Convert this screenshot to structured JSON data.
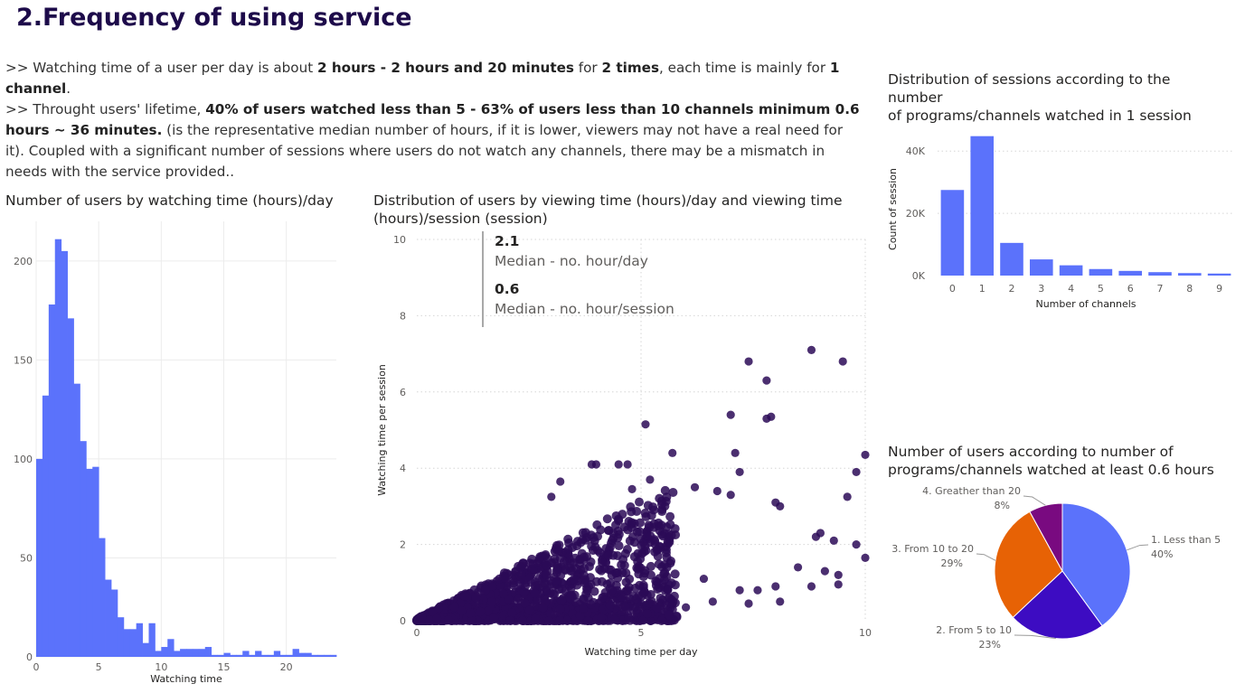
{
  "header": {
    "title": "2.Frequency of using service"
  },
  "description": {
    "p1": {
      "prefix": ">> Watching time of a user per day is about ",
      "bold1": "2 hours - 2 hours and 20 minutes",
      "mid": " for ",
      "bold2": "2 times",
      "mid2": ", each time is mainly for ",
      "bold3": "1 channel",
      "suffix": "."
    },
    "p2": {
      "prefix": ">> Throught users' lifetime, ",
      "bold1": "40% of users watched less than 5 - 63% of users less than 10 channels minimum 0.6 hours ~ 36 minutes.",
      "suffix": " (is the representative median number of hours, if it is lower, viewers may not have a real need for it). Coupled with a significant number of sessions where users do not watch any channels, there may be a mismatch in needs with the service provided.."
    }
  },
  "median_card": {
    "day_value": "2.1",
    "day_label": "Median - no. hour/day",
    "session_value": "0.6",
    "session_label": "Median - no. hour/session"
  },
  "colors": {
    "bar": "#5b72fb",
    "scatter": "#2b0a57",
    "pie": [
      "#5b72fb",
      "#3d0cc2",
      "#e76205",
      "#790a80"
    ]
  },
  "chart_data": [
    {
      "type": "bar",
      "title": "Number of users by watching time (hours)/day",
      "xlabel": "Watching time",
      "ylabel": "",
      "xlim": [
        0,
        24
      ],
      "ylim": [
        0,
        220
      ],
      "yticks": [
        0,
        50,
        100,
        150,
        200
      ],
      "xticks": [
        0,
        5,
        10,
        15,
        20
      ],
      "bin_width": 0.5,
      "bins_start": [
        0.0,
        0.5,
        1.0,
        1.5,
        2.0,
        2.5,
        3.0,
        3.5,
        4.0,
        4.5,
        5.0,
        5.5,
        6.0,
        6.5,
        7.0,
        7.5,
        8.0,
        8.5,
        9.0,
        9.5,
        10.0,
        10.5,
        11.0,
        11.5,
        12.0,
        12.5,
        13.0,
        13.5,
        14.0,
        14.5,
        15.0,
        15.5,
        16.0,
        16.5,
        17.0,
        17.5,
        18.0,
        18.5,
        19.0,
        19.5,
        20.0,
        20.5,
        21.0,
        21.5,
        22.0,
        22.5,
        23.0,
        23.5
      ],
      "values": [
        100,
        132,
        178,
        211,
        205,
        171,
        138,
        109,
        95,
        96,
        60,
        39,
        34,
        20,
        14,
        14,
        17,
        7,
        17,
        3,
        5,
        9,
        3,
        4,
        4,
        4,
        4,
        5,
        1,
        1,
        2,
        1,
        1,
        3,
        1,
        3,
        1,
        1,
        3,
        1,
        1,
        4,
        2,
        2,
        1,
        1,
        1,
        1
      ]
    },
    {
      "type": "scatter",
      "title": "Distribution of users by viewing time (hours)/day and viewing time (hours)/session (session)",
      "xlabel": "Watching time per day",
      "ylabel": "Watching time per session",
      "xlim": [
        0,
        10
      ],
      "ylim": [
        0,
        10
      ],
      "xticks": [
        0,
        5,
        10
      ],
      "yticks": [
        0,
        2,
        4,
        6,
        8,
        10
      ],
      "points": [
        [
          8.8,
          7.1
        ],
        [
          7.4,
          6.8
        ],
        [
          9.5,
          6.8
        ],
        [
          7.8,
          6.3
        ],
        [
          7.0,
          5.4
        ],
        [
          7.8,
          5.3
        ],
        [
          7.9,
          5.35
        ],
        [
          5.1,
          5.15
        ],
        [
          5.7,
          4.4
        ],
        [
          7.1,
          4.4
        ],
        [
          10.0,
          4.35
        ],
        [
          3.9,
          4.1
        ],
        [
          4.0,
          4.1
        ],
        [
          4.5,
          4.1
        ],
        [
          4.7,
          4.1
        ],
        [
          7.2,
          3.9
        ],
        [
          9.8,
          3.9
        ],
        [
          3.2,
          3.65
        ],
        [
          5.2,
          3.7
        ],
        [
          6.2,
          3.5
        ],
        [
          6.7,
          3.4
        ],
        [
          7.0,
          3.3
        ],
        [
          9.6,
          3.25
        ],
        [
          3.0,
          3.25
        ],
        [
          4.8,
          3.45
        ],
        [
          8.1,
          3.0
        ],
        [
          8.0,
          3.1
        ],
        [
          8.9,
          2.2
        ],
        [
          9.0,
          2.3
        ],
        [
          9.3,
          2.1
        ],
        [
          9.8,
          2.0
        ],
        [
          10.0,
          1.65
        ],
        [
          8.5,
          1.4
        ],
        [
          9.1,
          1.3
        ],
        [
          9.4,
          1.2
        ],
        [
          8.8,
          0.9
        ],
        [
          9.4,
          0.95
        ],
        [
          8.0,
          0.9
        ],
        [
          7.6,
          0.8
        ],
        [
          7.2,
          0.8
        ],
        [
          6.6,
          0.5
        ],
        [
          7.4,
          0.45
        ],
        [
          8.1,
          0.5
        ],
        [
          6.0,
          0.35
        ],
        [
          5.6,
          0.8
        ],
        [
          6.4,
          1.1
        ]
      ],
      "note": "dense cluster of points concentrated between 0-5 hours/day and 0-3 hours/session"
    },
    {
      "type": "bar",
      "title": "Distribution of sessions according to the number of programs/channels watched in 1 session",
      "title_lines": [
        "Distribution of sessions according to the",
        "number",
        "of programs/channels watched in 1 session"
      ],
      "xlabel": "Number of channels",
      "ylabel": "Count of session",
      "categories": [
        "0",
        "1",
        "2",
        "3",
        "4",
        "5",
        "6",
        "7",
        "8",
        "9"
      ],
      "values": [
        27500,
        44800,
        10500,
        5200,
        3300,
        2100,
        1500,
        1100,
        800,
        650
      ],
      "ylim": [
        0,
        45000
      ],
      "yticks": [
        0,
        20000,
        40000
      ],
      "ytick_labels": [
        "0K",
        "20K",
        "40K"
      ]
    },
    {
      "type": "pie",
      "title": "Number of users according to number of programs/channels watched at least 0.6 hours",
      "title_lines": [
        "Number of users according to number of",
        "programs/channels watched at least 0.6 hours"
      ],
      "slices": [
        {
          "label": "1. Less than 5",
          "pct_label": "40%",
          "value": 40
        },
        {
          "label": "2. From 5 to 10",
          "pct_label": "23%",
          "value": 23
        },
        {
          "label": "3. From 10 to 20",
          "pct_label": "29%",
          "value": 29
        },
        {
          "label": "4. Greather than 20",
          "pct_label": "8%",
          "value": 8
        }
      ]
    }
  ]
}
